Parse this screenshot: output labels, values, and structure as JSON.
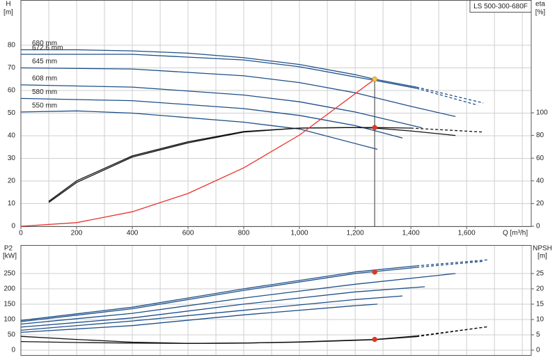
{
  "chart_data": [
    {
      "type": "line",
      "title": "LS 500-300-680F",
      "ylabel": "H",
      "yunit": "[m]",
      "y2label": "eta",
      "y2unit": "[%]",
      "xlabel": "Q [m³/h]",
      "xlim": [
        0,
        1832
      ],
      "ylim": [
        0,
        100
      ],
      "y2lim": [
        0,
        199.4
      ],
      "xticks": [
        0,
        200,
        400,
        600,
        800,
        {
          "value": 1000,
          "label": "1,000"
        },
        {
          "value": 1200,
          "label": "1,200"
        },
        {
          "value": 1400,
          "label": "1,400"
        },
        {
          "value": 1600,
          "label": "1,600"
        }
      ],
      "xgrid": [
        100,
        200,
        300,
        400,
        500,
        600,
        700,
        800,
        900,
        1000,
        1100,
        1200,
        1300,
        1400,
        1500,
        1600,
        1700,
        1800
      ],
      "yticks": [
        0,
        10,
        20,
        30,
        40,
        50,
        60,
        70,
        80
      ],
      "y2ticks": [
        0,
        20,
        40,
        60,
        80,
        100
      ],
      "grid": true,
      "series": [
        {
          "name": "680 mm",
          "color": "#1d4e89",
          "x": [
            0,
            200,
            400,
            600,
            800,
            1000,
            1200,
            1270,
            1420,
            1660
          ],
          "values": [
            78,
            78,
            77.5,
            76.5,
            74.5,
            71.5,
            67,
            65,
            61.5,
            54.5
          ],
          "dashed_from": 1420
        },
        {
          "name": "672.6 mm",
          "color": "#1d4e89",
          "x": [
            0,
            400,
            800,
            1000,
            1200,
            1270,
            1420,
            1640
          ],
          "values": [
            76,
            76,
            73.5,
            70.5,
            66,
            64.5,
            61,
            53.5
          ],
          "dashed_from": 1420
        },
        {
          "name": "645 mm",
          "color": "#1d4e89",
          "x": [
            0,
            400,
            800,
            1000,
            1200,
            1400,
            1560
          ],
          "values": [
            70,
            69.5,
            66.5,
            63.5,
            59,
            53,
            48.5
          ]
        },
        {
          "name": "608 mm",
          "color": "#1d4e89",
          "x": [
            0,
            400,
            800,
            1000,
            1200,
            1440
          ],
          "values": [
            62.5,
            61.5,
            58,
            55,
            50.5,
            43.5
          ]
        },
        {
          "name": "580 mm",
          "color": "#1d4e89",
          "x": [
            0,
            400,
            800,
            1000,
            1200,
            1370
          ],
          "values": [
            56.5,
            55.5,
            52,
            49,
            44.5,
            39
          ]
        },
        {
          "name": "550 mm",
          "color": "#1d4e89",
          "x": [
            0,
            200,
            400,
            800,
            1000,
            1280
          ],
          "values": [
            50.5,
            51,
            50,
            46,
            43,
            34
          ]
        },
        {
          "color": "#111111",
          "axis": "y2",
          "x": [
            100,
            200,
            400,
            600,
            800,
            1000,
            1200,
            1270,
            1400,
            1660
          ],
          "values": [
            21,
            38.5,
            61,
            73.5,
            83,
            86.5,
            87,
            87,
            86.5,
            83
          ],
          "dashed_from": 1420
        },
        {
          "color": "#111111",
          "axis": "y2",
          "x": [
            100,
            200,
            400,
            600,
            800,
            1000,
            1200,
            1270,
            1400,
            1560
          ],
          "values": [
            22,
            40,
            62,
            74.5,
            83.5,
            86.5,
            87,
            86.5,
            84,
            80
          ]
        },
        {
          "color": "#e8322b",
          "x": [
            0,
            200,
            400,
            600,
            800,
            1000,
            1270
          ],
          "values": [
            0,
            1.6,
            6.4,
            14.5,
            25.8,
            40.3,
            65
          ]
        }
      ],
      "operating_line": {
        "x": 1270,
        "y": 65,
        "color": "#777777"
      },
      "markers": [
        {
          "x": 1270,
          "y": 65,
          "color": "#f5c242"
        },
        {
          "x": 1270,
          "y": 87,
          "axis": "y2",
          "color": "#e8322b"
        }
      ]
    },
    {
      "type": "line",
      "ylabel": "P2",
      "yunit": "[kW]",
      "y2label": "NPSH",
      "y2unit": "[m]",
      "xlim": [
        0,
        1832
      ],
      "ylim": [
        -16,
        343
      ],
      "y2lim": [
        -1.6,
        34.3
      ],
      "xgrid": [
        100,
        200,
        300,
        400,
        500,
        600,
        700,
        800,
        900,
        1000,
        1100,
        1200,
        1300,
        1400,
        1500,
        1600,
        1700,
        1800
      ],
      "yticks": [
        0,
        50,
        100,
        150,
        200,
        250
      ],
      "y2ticks": [
        0,
        5,
        10,
        15,
        20,
        25
      ],
      "grid": true,
      "series": [
        {
          "color": "#1d4e89",
          "x": [
            0,
            400,
            800,
            1200,
            1420,
            1680
          ],
          "values": [
            97,
            140,
            200,
            255,
            275,
            295
          ],
          "dashed_from": 1420
        },
        {
          "color": "#1d4e89",
          "x": [
            0,
            400,
            800,
            1200,
            1420,
            1660
          ],
          "values": [
            93,
            135,
            195,
            250,
            270,
            290
          ],
          "dashed_from": 1420
        },
        {
          "color": "#1d4e89",
          "x": [
            0,
            400,
            800,
            1200,
            1560
          ],
          "values": [
            85,
            120,
            170,
            215,
            250
          ]
        },
        {
          "color": "#1d4e89",
          "x": [
            0,
            400,
            800,
            1200,
            1450
          ],
          "values": [
            75,
            105,
            150,
            190,
            207
          ]
        },
        {
          "color": "#1d4e89",
          "x": [
            0,
            400,
            800,
            1200,
            1370
          ],
          "values": [
            65,
            95,
            130,
            165,
            177
          ]
        },
        {
          "color": "#1d4e89",
          "x": [
            0,
            400,
            800,
            1200,
            1280
          ],
          "values": [
            58,
            80,
            115,
            145,
            150
          ]
        },
        {
          "color": "#111111",
          "axis": "y2",
          "x": [
            0,
            200,
            400,
            600,
            800,
            1000,
            1270,
            1420,
            1680
          ],
          "values": [
            4.5,
            3.5,
            2.6,
            2.2,
            2.3,
            2.7,
            3.5,
            4.6,
            7.7
          ],
          "dashed_from": 1420
        },
        {
          "color": "#111111",
          "axis": "y2",
          "x": [
            0,
            200,
            400,
            600,
            800,
            1000,
            1270,
            1420,
            1680
          ],
          "values": [
            2.8,
            2.5,
            2.3,
            2.2,
            2.3,
            2.6,
            3.4,
            4.4,
            7.7
          ],
          "dashed_from": 1420
        }
      ],
      "markers": [
        {
          "x": 1270,
          "y": 255,
          "color": "#e8322b"
        },
        {
          "x": 1270,
          "y": 3.5,
          "axis": "y2",
          "color": "#e8322b"
        }
      ]
    }
  ]
}
